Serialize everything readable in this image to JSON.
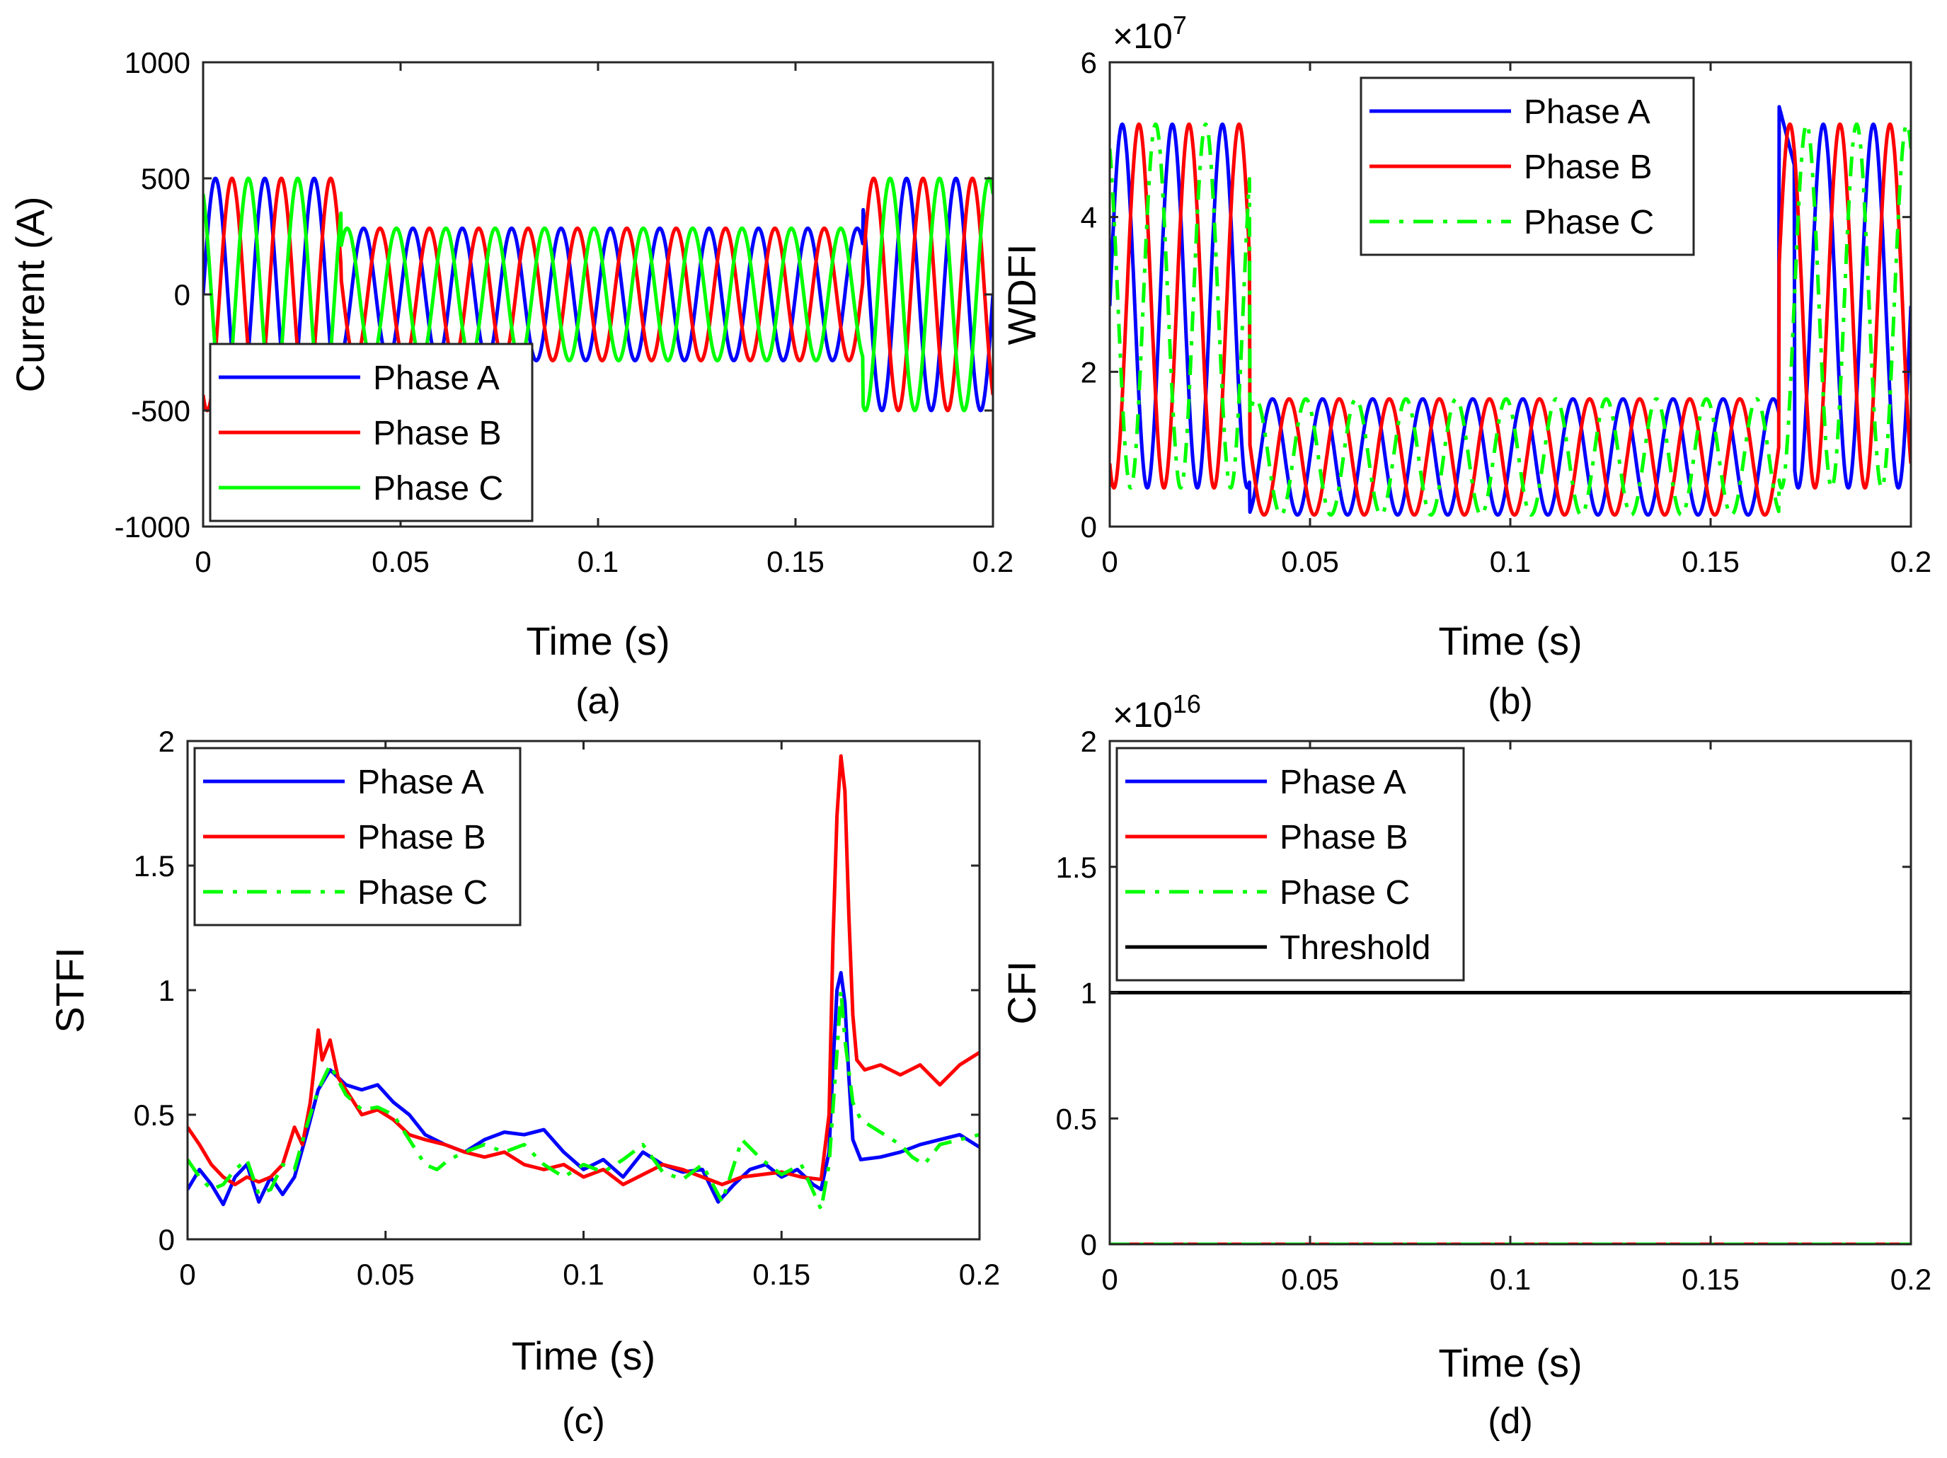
{
  "colors": {
    "phase_a": "#0000ff",
    "phase_b": "#ff0000",
    "phase_c": "#00ff00",
    "threshold": "#000000"
  },
  "chart_data": [
    {
      "id": "a",
      "type": "line",
      "caption": "(a)",
      "xlabel": "Time (s)",
      "ylabel": "Current (A)",
      "xlim": [
        0,
        0.2
      ],
      "ylim": [
        -1000,
        1000
      ],
      "xticks": [
        0,
        0.05,
        0.1,
        0.15,
        0.2
      ],
      "xtick_labels": [
        "0",
        "0.05",
        "0.1",
        "0.15",
        "0.2"
      ],
      "yticks": [
        -1000,
        -500,
        0,
        500,
        1000
      ],
      "ytick_labels": [
        "-1000",
        "-500",
        "0",
        "500",
        "1000"
      ],
      "exponent": null,
      "legend_position": "bottom-left",
      "grid": false,
      "signal": {
        "kind": "sine",
        "frequency_hz": 80,
        "amplitude_normal": 500,
        "amplitude_fault": 285,
        "fault_start": 0.035,
        "fault_end": 0.167,
        "phase_shifts_deg": [
          0,
          -120,
          120
        ]
      },
      "series": [
        {
          "name": "Phase A",
          "color": "#0000ff",
          "style": "solid"
        },
        {
          "name": "Phase B",
          "color": "#ff0000",
          "style": "solid"
        },
        {
          "name": "Phase C",
          "color": "#00ff00",
          "style": "solid"
        }
      ]
    },
    {
      "id": "b",
      "type": "line",
      "caption": "(b)",
      "xlabel": "Time (s)",
      "ylabel": "WDFI",
      "xlim": [
        0,
        0.2
      ],
      "ylim": [
        0,
        6
      ],
      "xticks": [
        0,
        0.05,
        0.1,
        0.15,
        0.2
      ],
      "xtick_labels": [
        "0",
        "0.05",
        "0.1",
        "0.15",
        "0.2"
      ],
      "yticks": [
        0,
        2,
        4,
        6
      ],
      "ytick_labels": [
        "0",
        "2",
        "4",
        "6"
      ],
      "exponent": {
        "base": "×10",
        "power": "7"
      },
      "legend_position": "top-right",
      "grid": false,
      "signal": {
        "kind": "oscillation",
        "frequency_hz": 80,
        "normal_range": [
          0.5,
          5.2
        ],
        "fault_range": [
          0.15,
          1.65
        ],
        "fault_start": 0.035,
        "fault_end": 0.167,
        "phase_shifts_deg": [
          0,
          -120,
          120
        ],
        "peak_after_fault": 5.45
      },
      "series": [
        {
          "name": "Phase A",
          "color": "#0000ff",
          "style": "solid"
        },
        {
          "name": "Phase B",
          "color": "#ff0000",
          "style": "solid"
        },
        {
          "name": "Phase C",
          "color": "#00ff00",
          "style": "dashed"
        }
      ]
    },
    {
      "id": "c",
      "type": "line",
      "caption": "(c)",
      "xlabel": "Time (s)",
      "ylabel": "STFI",
      "xlim": [
        0,
        0.2
      ],
      "ylim": [
        0,
        2
      ],
      "xticks": [
        0,
        0.05,
        0.1,
        0.15,
        0.2
      ],
      "xtick_labels": [
        "0",
        "0.05",
        "0.1",
        "0.15",
        "0.2"
      ],
      "yticks": [
        0,
        0.5,
        1,
        1.5,
        2
      ],
      "ytick_labels": [
        "0",
        "0.5",
        "1",
        "1.5",
        "2"
      ],
      "exponent": null,
      "legend_position": "top-left",
      "grid": false,
      "series": [
        {
          "name": "Phase A",
          "color": "#0000ff",
          "style": "solid",
          "x": [
            0,
            0.003,
            0.006,
            0.009,
            0.012,
            0.015,
            0.018,
            0.021,
            0.024,
            0.027,
            0.03,
            0.033,
            0.036,
            0.04,
            0.044,
            0.048,
            0.052,
            0.056,
            0.06,
            0.065,
            0.07,
            0.075,
            0.08,
            0.085,
            0.09,
            0.095,
            0.1,
            0.105,
            0.11,
            0.115,
            0.12,
            0.125,
            0.13,
            0.134,
            0.138,
            0.142,
            0.146,
            0.15,
            0.154,
            0.158,
            0.16,
            0.162,
            0.163,
            0.164,
            0.165,
            0.166,
            0.167,
            0.168,
            0.17,
            0.175,
            0.18,
            0.185,
            0.19,
            0.195,
            0.2
          ],
          "y": [
            0.2,
            0.28,
            0.22,
            0.14,
            0.25,
            0.3,
            0.15,
            0.25,
            0.18,
            0.25,
            0.42,
            0.6,
            0.68,
            0.62,
            0.6,
            0.62,
            0.55,
            0.5,
            0.42,
            0.38,
            0.35,
            0.4,
            0.43,
            0.42,
            0.44,
            0.35,
            0.28,
            0.32,
            0.25,
            0.35,
            0.3,
            0.27,
            0.28,
            0.15,
            0.22,
            0.28,
            0.3,
            0.25,
            0.28,
            0.22,
            0.2,
            0.35,
            0.7,
            1.0,
            1.07,
            0.95,
            0.65,
            0.4,
            0.32,
            0.33,
            0.35,
            0.38,
            0.4,
            0.42,
            0.37
          ]
        },
        {
          "name": "Phase B",
          "color": "#ff0000",
          "style": "solid",
          "x": [
            0,
            0.003,
            0.006,
            0.009,
            0.012,
            0.015,
            0.018,
            0.021,
            0.024,
            0.027,
            0.029,
            0.031,
            0.033,
            0.034,
            0.036,
            0.038,
            0.04,
            0.044,
            0.048,
            0.052,
            0.056,
            0.06,
            0.065,
            0.07,
            0.075,
            0.08,
            0.085,
            0.09,
            0.095,
            0.1,
            0.105,
            0.11,
            0.115,
            0.12,
            0.125,
            0.13,
            0.135,
            0.14,
            0.145,
            0.15,
            0.155,
            0.16,
            0.162,
            0.163,
            0.164,
            0.165,
            0.166,
            0.167,
            0.168,
            0.169,
            0.171,
            0.175,
            0.18,
            0.185,
            0.19,
            0.195,
            0.2
          ],
          "y": [
            0.45,
            0.38,
            0.3,
            0.25,
            0.22,
            0.25,
            0.23,
            0.25,
            0.3,
            0.45,
            0.38,
            0.55,
            0.84,
            0.72,
            0.8,
            0.65,
            0.6,
            0.5,
            0.52,
            0.48,
            0.42,
            0.4,
            0.38,
            0.35,
            0.33,
            0.35,
            0.3,
            0.28,
            0.3,
            0.25,
            0.28,
            0.22,
            0.26,
            0.3,
            0.28,
            0.25,
            0.22,
            0.25,
            0.26,
            0.27,
            0.25,
            0.24,
            0.5,
            1.2,
            1.7,
            1.94,
            1.8,
            1.3,
            0.9,
            0.72,
            0.68,
            0.7,
            0.66,
            0.7,
            0.62,
            0.7,
            0.75
          ]
        },
        {
          "name": "Phase C",
          "color": "#00ff00",
          "style": "dashed",
          "x": [
            0,
            0.003,
            0.006,
            0.009,
            0.012,
            0.015,
            0.018,
            0.021,
            0.024,
            0.027,
            0.03,
            0.033,
            0.036,
            0.04,
            0.044,
            0.048,
            0.052,
            0.056,
            0.06,
            0.063,
            0.066,
            0.07,
            0.075,
            0.08,
            0.085,
            0.09,
            0.095,
            0.1,
            0.105,
            0.11,
            0.115,
            0.12,
            0.125,
            0.13,
            0.135,
            0.14,
            0.145,
            0.15,
            0.155,
            0.16,
            0.162,
            0.164,
            0.165,
            0.166,
            0.168,
            0.17,
            0.173,
            0.176,
            0.18,
            0.183,
            0.186,
            0.19,
            0.195,
            0.2
          ],
          "y": [
            0.32,
            0.25,
            0.2,
            0.22,
            0.28,
            0.32,
            0.18,
            0.2,
            0.3,
            0.28,
            0.45,
            0.6,
            0.7,
            0.58,
            0.52,
            0.53,
            0.5,
            0.4,
            0.3,
            0.28,
            0.32,
            0.35,
            0.38,
            0.35,
            0.38,
            0.3,
            0.25,
            0.3,
            0.27,
            0.32,
            0.38,
            0.27,
            0.24,
            0.3,
            0.15,
            0.4,
            0.32,
            0.26,
            0.3,
            0.12,
            0.3,
            0.75,
            1.0,
            0.8,
            0.55,
            0.48,
            0.45,
            0.42,
            0.38,
            0.33,
            0.3,
            0.38,
            0.4,
            0.42
          ]
        }
      ]
    },
    {
      "id": "d",
      "type": "line",
      "caption": "(d)",
      "xlabel": "Time (s)",
      "ylabel": "CFI",
      "xlim": [
        0,
        0.2
      ],
      "ylim": [
        0,
        2
      ],
      "xticks": [
        0,
        0.05,
        0.1,
        0.15,
        0.2
      ],
      "xtick_labels": [
        "0",
        "0.05",
        "0.1",
        "0.15",
        "0.2"
      ],
      "yticks": [
        0,
        0.5,
        1,
        1.5,
        2
      ],
      "ytick_labels": [
        "0",
        "0.5",
        "1",
        "1.5",
        "2"
      ],
      "exponent": {
        "base": "×10",
        "power": "16"
      },
      "legend_position": "top-left",
      "grid": false,
      "series": [
        {
          "name": "Phase A",
          "color": "#0000ff",
          "style": "solid",
          "x": [
            0,
            0.2
          ],
          "y": [
            0,
            0
          ]
        },
        {
          "name": "Phase B",
          "color": "#ff0000",
          "style": "solid",
          "x": [
            0,
            0.2
          ],
          "y": [
            0,
            0
          ]
        },
        {
          "name": "Phase C",
          "color": "#00ff00",
          "style": "dashed",
          "x": [
            0,
            0.2
          ],
          "y": [
            0,
            0
          ]
        },
        {
          "name": "Threshold",
          "color": "#000000",
          "style": "solid",
          "x": [
            0,
            0.2
          ],
          "y": [
            1,
            1
          ]
        }
      ]
    }
  ]
}
